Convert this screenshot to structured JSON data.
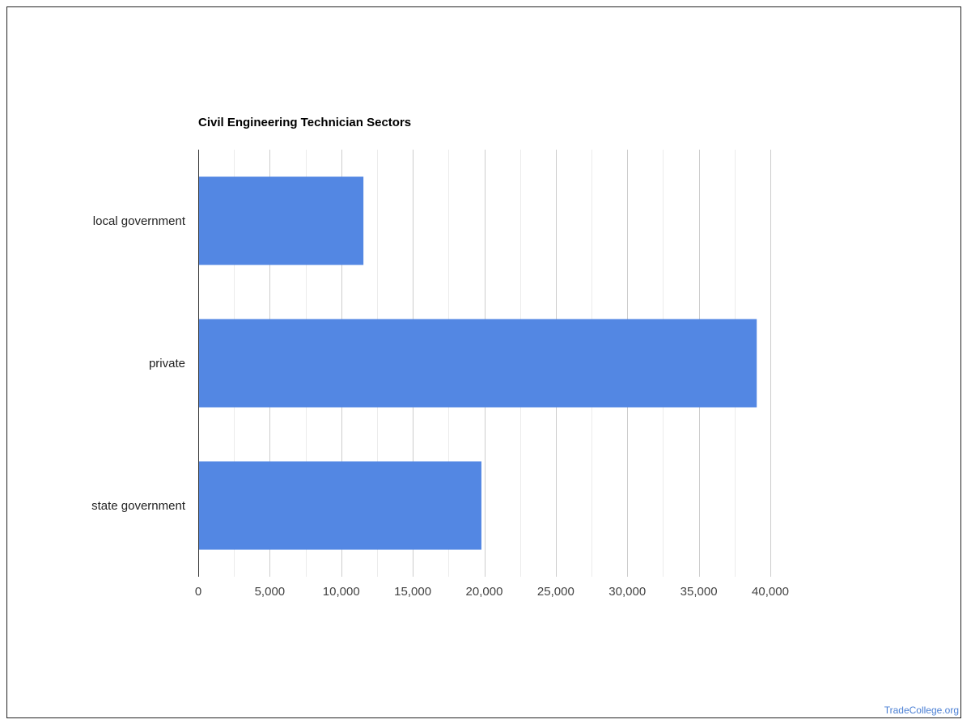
{
  "chart_data": {
    "type": "bar",
    "orientation": "horizontal",
    "title": "Civil Engineering Technician Sectors",
    "xlabel": "",
    "ylabel": "",
    "categories": [
      "local government",
      "private",
      "state government"
    ],
    "values": [
      11550,
      39050,
      19800
    ],
    "xlim": [
      0,
      40000
    ],
    "x_ticks": [
      0,
      5000,
      10000,
      15000,
      20000,
      25000,
      30000,
      35000,
      40000
    ],
    "x_tick_labels": [
      "0",
      "5,000",
      "10,000",
      "15,000",
      "20,000",
      "25,000",
      "30,000",
      "35,000",
      "40,000"
    ],
    "grid": true,
    "minor_gridlines": true,
    "legend": "none",
    "bar_color": "#5387e3"
  },
  "watermark": "TradeCollege.org"
}
